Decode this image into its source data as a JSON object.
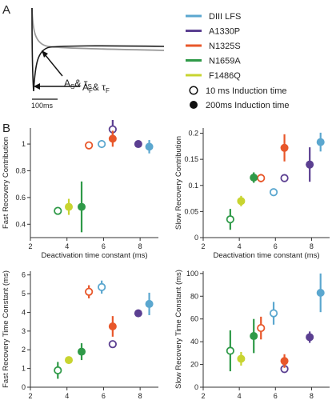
{
  "panels": {
    "a_label": "A",
    "b_label": "B"
  },
  "trace": {
    "slow_annotation": "A",
    "slow_sub": "S",
    "slow_tau_sub": "S",
    "fast_annotation": "A",
    "fast_sub": "F",
    "fast_tau_sub": "F",
    "amp_sep": "& τ",
    "scale_bar": "100ms"
  },
  "legend": {
    "items": [
      {
        "label": "DIII LFS",
        "color": "#5ba7cf"
      },
      {
        "label": "A1330P",
        "color": "#5b3f91"
      },
      {
        "label": "N1325S",
        "color": "#e8572a"
      },
      {
        "label": "N1659A",
        "color": "#2f9a48"
      },
      {
        "label": "F1486Q",
        "color": "#c8d430"
      }
    ],
    "open_marker_label": "10 ms Induction time",
    "filled_marker_label": "200ms Induction time"
  },
  "chart_data": [
    {
      "type": "scatter",
      "ylabel": "Fast Recovery Contribution",
      "xlabel": "Deactivation time constant (ms)",
      "xlim": [
        2,
        9
      ],
      "ylim": [
        0.3,
        1.12
      ],
      "xticks": [
        2,
        4,
        6,
        8
      ],
      "yticks": [
        0.4,
        0.6,
        0.8,
        1
      ],
      "points": [
        {
          "series": "DIII LFS",
          "induction": "10 ms",
          "x": 5.9,
          "y": 1.0,
          "err": 0.03
        },
        {
          "series": "DIII LFS",
          "induction": "200 ms",
          "x": 8.5,
          "y": 0.98,
          "err": 0.05
        },
        {
          "series": "A1330P",
          "induction": "10 ms",
          "x": 6.5,
          "y": 1.11,
          "err": 0.07
        },
        {
          "series": "A1330P",
          "induction": "200 ms",
          "x": 7.9,
          "y": 1.0,
          "err": 0.02
        },
        {
          "series": "N1325S",
          "induction": "10 ms",
          "x": 5.2,
          "y": 0.99,
          "err": 0.02
        },
        {
          "series": "N1325S",
          "induction": "200 ms",
          "x": 6.5,
          "y": 1.04,
          "err": 0.06
        },
        {
          "series": "N1659A",
          "induction": "10 ms",
          "x": 3.5,
          "y": 0.5,
          "err": 0.02
        },
        {
          "series": "N1659A",
          "induction": "200 ms",
          "x": 4.8,
          "y": 0.53,
          "err": 0.19
        },
        {
          "series": "F1486Q",
          "induction": "200 ms",
          "x": 4.1,
          "y": 0.53,
          "err": 0.06
        }
      ]
    },
    {
      "type": "scatter",
      "ylabel": "Slow Recovery Contribution",
      "xlabel": "Deactivation time constant (ms)",
      "xlim": [
        2,
        9
      ],
      "ylim": [
        0,
        0.21
      ],
      "xticks": [
        2,
        4,
        6,
        8
      ],
      "yticks": [
        0,
        0.05,
        0.1,
        0.15,
        0.2
      ],
      "points": [
        {
          "series": "DIII LFS",
          "induction": "10 ms",
          "x": 5.9,
          "y": 0.087,
          "err": 0.007
        },
        {
          "series": "DIII LFS",
          "induction": "200 ms",
          "x": 8.5,
          "y": 0.183,
          "err": 0.018
        },
        {
          "series": "A1330P",
          "induction": "10 ms",
          "x": 6.5,
          "y": 0.114,
          "err": 0.006
        },
        {
          "series": "A1330P",
          "induction": "200 ms",
          "x": 7.9,
          "y": 0.14,
          "err": 0.033
        },
        {
          "series": "N1325S",
          "induction": "10 ms",
          "x": 5.2,
          "y": 0.114,
          "err": 0.008
        },
        {
          "series": "N1325S",
          "induction": "200 ms",
          "x": 6.5,
          "y": 0.172,
          "err": 0.026
        },
        {
          "series": "N1659A",
          "induction": "10 ms",
          "x": 3.5,
          "y": 0.035,
          "err": 0.02
        },
        {
          "series": "N1659A",
          "induction": "200 ms",
          "x": 4.8,
          "y": 0.115,
          "err": 0.01
        },
        {
          "series": "F1486Q",
          "induction": "200 ms",
          "x": 4.1,
          "y": 0.07,
          "err": 0.01
        }
      ]
    },
    {
      "type": "scatter",
      "ylabel": "Fast Recovery Time Constant (ms)",
      "xlabel": "Deactivation time constant (ms)",
      "xlim": [
        2,
        9
      ],
      "ylim": [
        0,
        6.2
      ],
      "xticks": [
        2,
        4,
        6,
        8
      ],
      "yticks": [
        0,
        1,
        2,
        3,
        4,
        5,
        6
      ],
      "points": [
        {
          "series": "DIII LFS",
          "induction": "10 ms",
          "x": 5.9,
          "y": 5.35,
          "err": 0.35
        },
        {
          "series": "DIII LFS",
          "induction": "200 ms",
          "x": 8.5,
          "y": 4.45,
          "err": 0.6
        },
        {
          "series": "A1330P",
          "induction": "10 ms",
          "x": 6.5,
          "y": 2.3,
          "err": 0.12
        },
        {
          "series": "A1330P",
          "induction": "200 ms",
          "x": 7.9,
          "y": 3.95,
          "err": 0.2
        },
        {
          "series": "N1325S",
          "induction": "10 ms",
          "x": 5.2,
          "y": 5.1,
          "err": 0.35
        },
        {
          "series": "N1325S",
          "induction": "200 ms",
          "x": 6.5,
          "y": 3.25,
          "err": 0.55
        },
        {
          "series": "N1659A",
          "induction": "10 ms",
          "x": 3.5,
          "y": 0.9,
          "err": 0.45
        },
        {
          "series": "N1659A",
          "induction": "200 ms",
          "x": 4.8,
          "y": 1.9,
          "err": 0.45
        },
        {
          "series": "F1486Q",
          "induction": "200 ms",
          "x": 4.1,
          "y": 1.45,
          "err": 0.1
        }
      ]
    },
    {
      "type": "scatter",
      "ylabel": "Slow Recovery Time Constant (ms)",
      "xlabel": "Deactivation time constant (ms)",
      "xlim": [
        2,
        9
      ],
      "ylim": [
        0,
        102
      ],
      "xticks": [
        2,
        4,
        6,
        8
      ],
      "yticks": [
        0,
        20,
        40,
        60,
        80,
        100
      ],
      "points": [
        {
          "series": "DIII LFS",
          "induction": "10 ms",
          "x": 5.9,
          "y": 65,
          "err": 10
        },
        {
          "series": "DIII LFS",
          "induction": "200 ms",
          "x": 8.5,
          "y": 83,
          "err": 17
        },
        {
          "series": "A1330P",
          "induction": "10 ms",
          "x": 6.5,
          "y": 16,
          "err": 3
        },
        {
          "series": "A1330P",
          "induction": "200 ms",
          "x": 7.9,
          "y": 44,
          "err": 5
        },
        {
          "series": "N1325S",
          "induction": "10 ms",
          "x": 5.2,
          "y": 52,
          "err": 10
        },
        {
          "series": "N1325S",
          "induction": "200 ms",
          "x": 6.5,
          "y": 23,
          "err": 6
        },
        {
          "series": "N1659A",
          "induction": "10 ms",
          "x": 3.5,
          "y": 32,
          "err": 18
        },
        {
          "series": "N1659A",
          "induction": "200 ms",
          "x": 4.8,
          "y": 45,
          "err": 15
        },
        {
          "series": "F1486Q",
          "induction": "200 ms",
          "x": 4.1,
          "y": 25,
          "err": 6
        }
      ]
    }
  ]
}
